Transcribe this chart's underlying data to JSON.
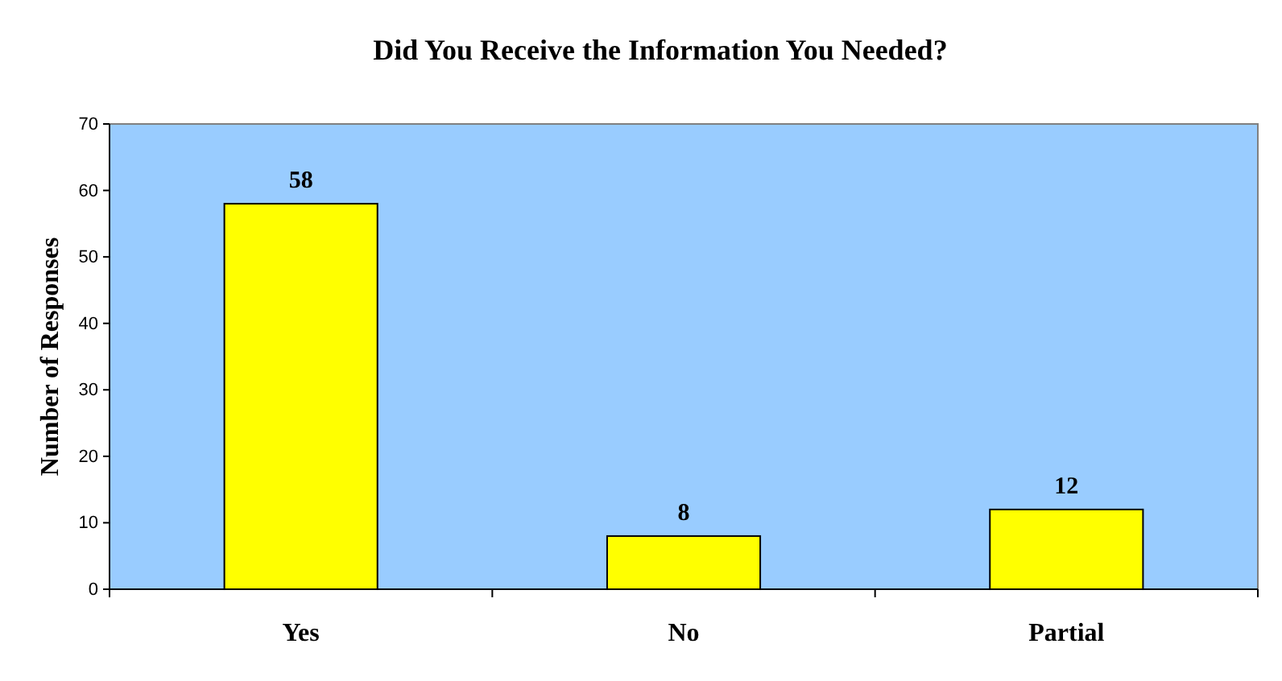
{
  "chart_data": {
    "type": "bar",
    "title": "Did You Receive the Information You Needed?",
    "ylabel": "Number of Responses",
    "categories": [
      "Yes",
      "No",
      "Partial"
    ],
    "values": [
      58,
      8,
      12
    ],
    "color": "#ffff00",
    "ylim": [
      0,
      70
    ],
    "yticks": [
      0,
      10,
      20,
      30,
      40,
      50,
      60,
      70
    ],
    "data_labels": true
  }
}
